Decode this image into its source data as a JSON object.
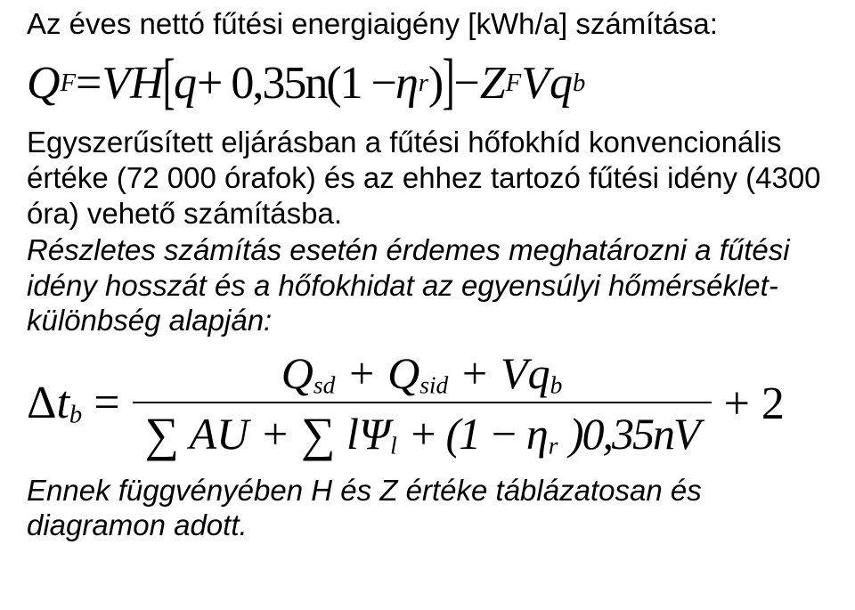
{
  "heading": "Az éves nettó fűtési energiaigény  [kWh/a] számítása:",
  "eq1": {
    "lhs_Q": "Q",
    "lhs_sub": "F",
    "eq": " = ",
    "VH": "VH",
    "br_l": "[",
    "q": "q",
    "plus035n": " + 0,35n(1 − ",
    "eta": "η",
    "eta_sub": "r",
    "close": " )",
    "br_r": "]",
    "minus": " − ",
    "Z": "Z",
    "Z_sub": "F",
    "Vq": "Vq",
    "Vq_sub": "b"
  },
  "para1": "Egyszerűsített eljárásban a fűtési hőfokhíd konvencionális értéke (72 000 órafok) és az ehhez tartozó fűtési idény (4300 óra) vehető számításba.",
  "para2": "Részletes számítás esetén érdemes meghatározni a fűtési idény hosszát és a hőfokhidat az egyensúlyi hőmérséklet-különbség alapján:",
  "eq2": {
    "delta": "Δ",
    "t": "t",
    "t_sub": "b",
    "eq": " = ",
    "num": {
      "Q1": "Q",
      "Q1s": "sd",
      "p1": " + ",
      "Q2": "Q",
      "Q2s": "sid",
      "p2": " + ",
      "Vq": "Vq",
      "Vqs": "b"
    },
    "den": {
      "sum1": "∑",
      "AU": " AU ",
      "p1": "+ ",
      "sum2": "∑",
      "lPsi": " lΨ",
      "lPsi_s": "l",
      "p2": " + (1 − ",
      "eta": "η",
      "eta_s": "r",
      "close": " )0,35nV"
    },
    "tail": "+ 2"
  },
  "para3_a": "Ennek függvényében ",
  "para3_b": " és ",
  "para3_c": " értéke táblázatosan és diagramon adott.",
  "sym_H": "H",
  "sym_Z": "Z"
}
